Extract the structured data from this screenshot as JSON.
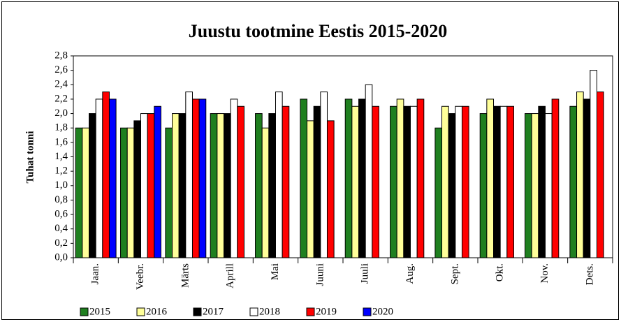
{
  "chart_data": {
    "type": "bar",
    "title": "Juustu tootmine Eestis 2015-2020",
    "y_label": "Tuhat tonni",
    "categories": [
      "Jaan.",
      "Veebr.",
      "Märts",
      "Aprill",
      "Mai",
      "Juuni",
      "Juuli",
      "Aug.",
      "Sept.",
      "Okt.",
      "Nov.",
      "Dets."
    ],
    "series": [
      {
        "name": "2015",
        "color": "#1f7f1f",
        "values": [
          1.8,
          1.8,
          1.8,
          2.0,
          2.0,
          2.2,
          2.2,
          2.1,
          1.8,
          2.0,
          2.0,
          2.1
        ]
      },
      {
        "name": "2016",
        "color": "#ffff99",
        "values": [
          1.8,
          1.8,
          2.0,
          2.0,
          1.8,
          1.9,
          2.1,
          2.2,
          2.1,
          2.2,
          2.0,
          2.3
        ]
      },
      {
        "name": "2017",
        "color": "#000000",
        "values": [
          2.0,
          1.9,
          2.0,
          2.0,
          2.0,
          2.1,
          2.2,
          2.1,
          2.0,
          2.1,
          2.1,
          2.2
        ]
      },
      {
        "name": "2018",
        "color": "#ffffff",
        "values": [
          2.2,
          2.0,
          2.3,
          2.2,
          2.3,
          2.3,
          2.4,
          2.1,
          2.1,
          2.1,
          2.0,
          2.6
        ]
      },
      {
        "name": "2019",
        "color": "#ff0000",
        "values": [
          2.3,
          2.0,
          2.2,
          2.1,
          2.1,
          1.9,
          2.1,
          2.2,
          2.1,
          2.1,
          2.2,
          2.3
        ]
      },
      {
        "name": "2020",
        "color": "#0000ff",
        "values": [
          2.2,
          2.1,
          2.2,
          null,
          null,
          null,
          null,
          null,
          null,
          null,
          null,
          null
        ]
      }
    ],
    "ylim": [
      0,
      2.8
    ],
    "yticks": [
      {
        "value": 0,
        "label": "0,0"
      },
      {
        "value": 0.2,
        "label": "0,2"
      },
      {
        "value": 0.4,
        "label": "0,4"
      },
      {
        "value": 0.6,
        "label": "0,6"
      },
      {
        "value": 0.8,
        "label": "0,8"
      },
      {
        "value": 1.0,
        "label": "1,0"
      },
      {
        "value": 1.2,
        "label": "1,2"
      },
      {
        "value": 1.4,
        "label": "1,4"
      },
      {
        "value": 1.6,
        "label": "1,6"
      },
      {
        "value": 1.8,
        "label": "1,8"
      },
      {
        "value": 2.0,
        "label": "2,0"
      },
      {
        "value": 2.2,
        "label": "2,2"
      },
      {
        "value": 2.4,
        "label": "2,4"
      },
      {
        "value": 2.6,
        "label": "2,6"
      },
      {
        "value": 2.8,
        "label": "2,8"
      }
    ],
    "grid": false,
    "legend": "bottom"
  }
}
